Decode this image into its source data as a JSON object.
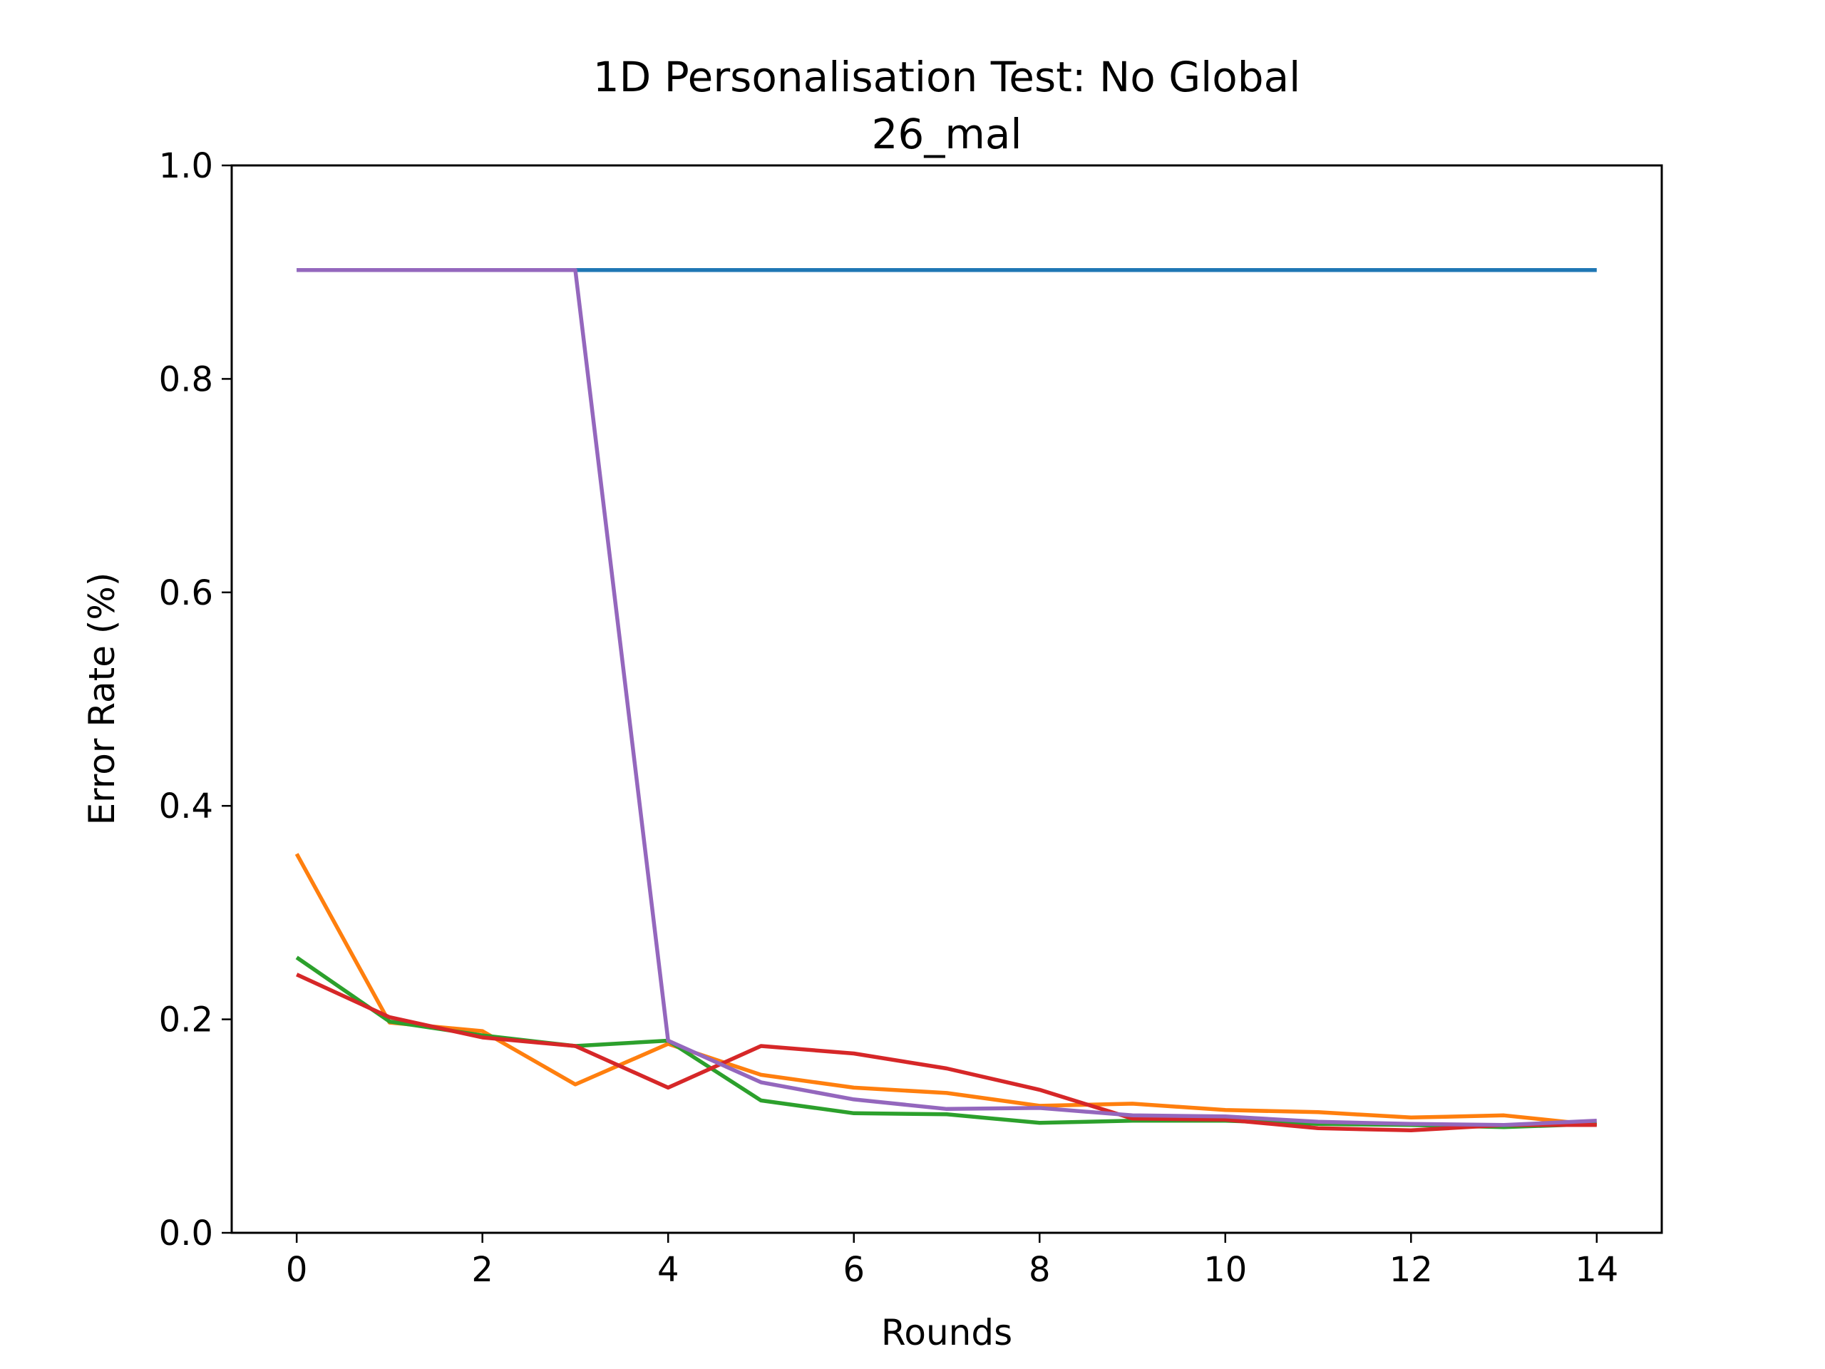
{
  "chart_data": {
    "type": "line",
    "title": "1D Personalisation Test: No Global",
    "subtitle": "26_mal",
    "xlabel": "Rounds",
    "ylabel": "Error Rate (%)",
    "xlim": [
      -0.7,
      14.7
    ],
    "ylim": [
      0.0,
      1.0
    ],
    "xticks": [
      0,
      2,
      4,
      6,
      8,
      10,
      12,
      14
    ],
    "yticks": [
      0.0,
      0.2,
      0.4,
      0.6,
      0.8,
      1.0
    ],
    "ytick_labels": [
      "0.0",
      "0.2",
      "0.4",
      "0.6",
      "0.8",
      "1.0"
    ],
    "grid": false,
    "x": [
      0,
      1,
      2,
      3,
      4,
      5,
      6,
      7,
      8,
      9,
      10,
      11,
      12,
      13,
      14
    ],
    "series": [
      {
        "color": "#1f77b4",
        "values": [
          0.902,
          0.902,
          0.902,
          0.902,
          0.902,
          0.902,
          0.902,
          0.902,
          0.902,
          0.902,
          0.902,
          0.902,
          0.902,
          0.902,
          0.902
        ]
      },
      {
        "color": "#ff7f0e",
        "values": [
          0.355,
          0.197,
          0.189,
          0.139,
          0.177,
          0.148,
          0.136,
          0.131,
          0.119,
          0.121,
          0.115,
          0.113,
          0.108,
          0.11,
          0.101
        ]
      },
      {
        "color": "#2ca02c",
        "values": [
          0.258,
          0.198,
          0.185,
          0.175,
          0.18,
          0.124,
          0.112,
          0.111,
          0.103,
          0.105,
          0.105,
          0.102,
          0.101,
          0.099,
          0.102
        ]
      },
      {
        "color": "#d62728",
        "values": [
          0.242,
          0.202,
          0.183,
          0.175,
          0.136,
          0.175,
          0.168,
          0.154,
          0.134,
          0.107,
          0.106,
          0.098,
          0.096,
          0.101,
          0.101
        ]
      },
      {
        "color": "#9467bd",
        "values": [
          0.902,
          0.902,
          0.902,
          0.902,
          0.18,
          0.141,
          0.125,
          0.116,
          0.117,
          0.11,
          0.109,
          0.104,
          0.102,
          0.101,
          0.105
        ]
      }
    ]
  }
}
